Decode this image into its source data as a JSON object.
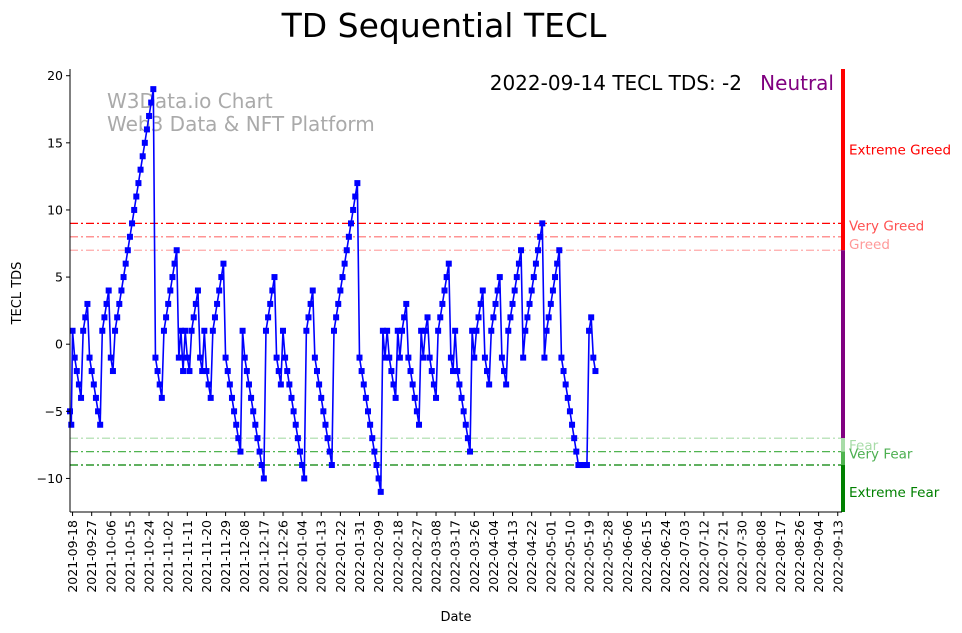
{
  "chart_data": {
    "type": "line",
    "title": "TD Sequential TECL",
    "xlabel": "Date",
    "ylabel": "TECL TDS",
    "ylim": [
      -12.5,
      20.5
    ],
    "y_ticks": [
      20,
      15,
      10,
      5,
      0,
      -5,
      -10
    ],
    "watermark_lines": [
      "W3Data.io Chart",
      "Web3 Data & NFT Platform"
    ],
    "status": {
      "text": "2022-09-14 TECL TDS: -2",
      "sentiment": "Neutral",
      "sentiment_color": "#800080"
    },
    "x_tick_labels": [
      "2021-09-18",
      "2021-09-27",
      "2021-10-06",
      "2021-10-15",
      "2021-10-24",
      "2021-11-02",
      "2021-11-11",
      "2021-11-20",
      "2021-11-29",
      "2021-12-08",
      "2021-12-17",
      "2021-12-26",
      "2022-01-04",
      "2022-01-13",
      "2022-01-22",
      "2022-01-31",
      "2022-02-09",
      "2022-02-18",
      "2022-02-27",
      "2022-03-08",
      "2022-03-17",
      "2022-03-26",
      "2022-04-04",
      "2022-04-13",
      "2022-04-22",
      "2022-05-01",
      "2022-05-10",
      "2022-05-19",
      "2022-05-28",
      "2022-06-06",
      "2022-06-15",
      "2022-06-24",
      "2022-07-03",
      "2022-07-12",
      "2022-07-21",
      "2022-07-30",
      "2022-08-08",
      "2022-08-17",
      "2022-08-26",
      "2022-09-04",
      "2022-09-13"
    ],
    "x_tick_day_offsets": [
      0,
      9,
      18,
      27,
      36,
      45,
      54,
      63,
      72,
      81,
      90,
      99,
      108,
      117,
      126,
      135,
      144,
      153,
      162,
      171,
      180,
      189,
      198,
      207,
      216,
      225,
      234,
      243,
      252,
      261,
      270,
      279,
      288,
      297,
      306,
      315,
      324,
      333,
      342,
      351,
      360
    ],
    "x_day_range": [
      -1.2,
      362
    ],
    "series": [
      {
        "name": "TECL TDS",
        "color": "#0000ff",
        "marker": "square",
        "points": [
          [
            -1.2,
            -5
          ],
          [
            -0.6,
            -6
          ],
          [
            0,
            1
          ],
          [
            1,
            -1
          ],
          [
            2,
            -2
          ],
          [
            3,
            -3
          ],
          [
            4,
            -4
          ],
          [
            5,
            1
          ],
          [
            6,
            2
          ],
          [
            7,
            3
          ],
          [
            8,
            -1
          ],
          [
            9,
            -2
          ],
          [
            10,
            -3
          ],
          [
            11,
            -4
          ],
          [
            12,
            -5
          ],
          [
            13,
            -6
          ],
          [
            14,
            1
          ],
          [
            15,
            2
          ],
          [
            16,
            3
          ],
          [
            17,
            4
          ],
          [
            18,
            -1
          ],
          [
            19,
            -2
          ],
          [
            20,
            1
          ],
          [
            21,
            2
          ],
          [
            22,
            3
          ],
          [
            23,
            4
          ],
          [
            24,
            5
          ],
          [
            25,
            6
          ],
          [
            26,
            7
          ],
          [
            27,
            8
          ],
          [
            28,
            9
          ],
          [
            29,
            10
          ],
          [
            30,
            11
          ],
          [
            31,
            12
          ],
          [
            32,
            13
          ],
          [
            33,
            14
          ],
          [
            34,
            15
          ],
          [
            35,
            16
          ],
          [
            36,
            17
          ],
          [
            37,
            18
          ],
          [
            38,
            19
          ],
          [
            39,
            -1
          ],
          [
            40,
            -2
          ],
          [
            41,
            -3
          ],
          [
            42,
            -4
          ],
          [
            43,
            1
          ],
          [
            44,
            2
          ],
          [
            45,
            3
          ],
          [
            46,
            4
          ],
          [
            47,
            5
          ],
          [
            48,
            6
          ],
          [
            49,
            7
          ],
          [
            50,
            -1
          ],
          [
            51,
            1
          ],
          [
            52,
            -2
          ],
          [
            53,
            1
          ],
          [
            54,
            -1
          ],
          [
            55,
            -2
          ],
          [
            56,
            1
          ],
          [
            57,
            2
          ],
          [
            58,
            3
          ],
          [
            59,
            4
          ],
          [
            60,
            -1
          ],
          [
            61,
            -2
          ],
          [
            62,
            1
          ],
          [
            63,
            -2
          ],
          [
            64,
            -3
          ],
          [
            65,
            -4
          ],
          [
            66,
            1
          ],
          [
            67,
            2
          ],
          [
            68,
            3
          ],
          [
            69,
            4
          ],
          [
            70,
            5
          ],
          [
            71,
            6
          ],
          [
            72,
            -1
          ],
          [
            73,
            -2
          ],
          [
            74,
            -3
          ],
          [
            75,
            -4
          ],
          [
            76,
            -5
          ],
          [
            77,
            -6
          ],
          [
            78,
            -7
          ],
          [
            79,
            -8
          ],
          [
            80,
            1
          ],
          [
            81,
            -1
          ],
          [
            82,
            -2
          ],
          [
            83,
            -3
          ],
          [
            84,
            -4
          ],
          [
            85,
            -5
          ],
          [
            86,
            -6
          ],
          [
            87,
            -7
          ],
          [
            88,
            -8
          ],
          [
            89,
            -9
          ],
          [
            90,
            -10
          ],
          [
            91,
            1
          ],
          [
            92,
            2
          ],
          [
            93,
            3
          ],
          [
            94,
            4
          ],
          [
            95,
            5
          ],
          [
            96,
            -1
          ],
          [
            97,
            -2
          ],
          [
            98,
            -3
          ],
          [
            99,
            1
          ],
          [
            100,
            -1
          ],
          [
            101,
            -2
          ],
          [
            102,
            -3
          ],
          [
            103,
            -4
          ],
          [
            104,
            -5
          ],
          [
            105,
            -6
          ],
          [
            106,
            -7
          ],
          [
            107,
            -8
          ],
          [
            108,
            -9
          ],
          [
            109,
            -10
          ],
          [
            110,
            1
          ],
          [
            111,
            2
          ],
          [
            112,
            3
          ],
          [
            113,
            4
          ],
          [
            114,
            -1
          ],
          [
            115,
            -2
          ],
          [
            116,
            -3
          ],
          [
            117,
            -4
          ],
          [
            118,
            -5
          ],
          [
            119,
            -6
          ],
          [
            120,
            -7
          ],
          [
            121,
            -8
          ],
          [
            122,
            -9
          ],
          [
            123,
            1
          ],
          [
            124,
            2
          ],
          [
            125,
            3
          ],
          [
            126,
            4
          ],
          [
            127,
            5
          ],
          [
            128,
            6
          ],
          [
            129,
            7
          ],
          [
            130,
            8
          ],
          [
            131,
            9
          ],
          [
            132,
            10
          ],
          [
            133,
            11
          ],
          [
            134,
            12
          ],
          [
            135,
            -1
          ],
          [
            136,
            -2
          ],
          [
            137,
            -3
          ],
          [
            138,
            -4
          ],
          [
            139,
            -5
          ],
          [
            140,
            -6
          ],
          [
            141,
            -7
          ],
          [
            142,
            -8
          ],
          [
            143,
            -9
          ],
          [
            144,
            -10
          ],
          [
            145,
            -11
          ],
          [
            146,
            1
          ],
          [
            147,
            -1
          ],
          [
            148,
            1
          ],
          [
            149,
            -1
          ],
          [
            150,
            -2
          ],
          [
            151,
            -3
          ],
          [
            152,
            -4
          ],
          [
            153,
            1
          ],
          [
            154,
            -1
          ],
          [
            155,
            1
          ],
          [
            156,
            2
          ],
          [
            157,
            3
          ],
          [
            158,
            -1
          ],
          [
            159,
            -2
          ],
          [
            160,
            -3
          ],
          [
            161,
            -4
          ],
          [
            162,
            -5
          ],
          [
            163,
            -6
          ],
          [
            164,
            1
          ],
          [
            165,
            -1
          ],
          [
            166,
            1
          ],
          [
            167,
            2
          ],
          [
            168,
            -1
          ],
          [
            169,
            -2
          ],
          [
            170,
            -3
          ],
          [
            171,
            -4
          ],
          [
            172,
            1
          ],
          [
            173,
            2
          ],
          [
            174,
            3
          ],
          [
            175,
            4
          ],
          [
            176,
            5
          ],
          [
            177,
            6
          ],
          [
            178,
            -1
          ],
          [
            179,
            -2
          ],
          [
            180,
            1
          ],
          [
            181,
            -2
          ],
          [
            182,
            -3
          ],
          [
            183,
            -4
          ],
          [
            184,
            -5
          ],
          [
            185,
            -6
          ],
          [
            186,
            -7
          ],
          [
            187,
            -8
          ],
          [
            188,
            1
          ],
          [
            189,
            -1
          ],
          [
            190,
            1
          ],
          [
            191,
            2
          ],
          [
            192,
            3
          ],
          [
            193,
            4
          ],
          [
            194,
            -1
          ],
          [
            195,
            -2
          ],
          [
            196,
            -3
          ],
          [
            197,
            1
          ],
          [
            198,
            2
          ],
          [
            199,
            3
          ],
          [
            200,
            4
          ],
          [
            201,
            5
          ],
          [
            202,
            -1
          ],
          [
            203,
            -2
          ],
          [
            204,
            -3
          ],
          [
            205,
            1
          ],
          [
            206,
            2
          ],
          [
            207,
            3
          ],
          [
            208,
            4
          ],
          [
            209,
            5
          ],
          [
            210,
            6
          ],
          [
            211,
            7
          ],
          [
            212,
            -1
          ],
          [
            213,
            1
          ],
          [
            214,
            2
          ],
          [
            215,
            3
          ],
          [
            216,
            4
          ],
          [
            217,
            5
          ],
          [
            218,
            6
          ],
          [
            219,
            7
          ],
          [
            220,
            8
          ],
          [
            221,
            9
          ],
          [
            222,
            -1
          ],
          [
            223,
            1
          ],
          [
            224,
            2
          ],
          [
            225,
            3
          ],
          [
            226,
            4
          ],
          [
            227,
            5
          ],
          [
            228,
            6
          ],
          [
            229,
            7
          ],
          [
            230,
            -1
          ],
          [
            231,
            -2
          ],
          [
            232,
            -3
          ],
          [
            233,
            -4
          ],
          [
            234,
            -5
          ],
          [
            235,
            -6
          ],
          [
            236,
            -7
          ],
          [
            237,
            -8
          ],
          [
            238,
            -9
          ],
          [
            239,
            -9
          ],
          [
            240,
            -9
          ],
          [
            241,
            -9
          ],
          [
            242,
            -9
          ],
          [
            243,
            1
          ],
          [
            244,
            2
          ],
          [
            245,
            -1
          ],
          [
            246,
            -2
          ]
        ]
      }
    ],
    "reference_lines": [
      {
        "name": "Very Greed",
        "y": 9,
        "color": "#ff0000",
        "style": "dashdot",
        "label": "Very Greed",
        "label_color": "#ff5050"
      },
      {
        "name": "Greed upper",
        "y": 8,
        "color": "#ff7070",
        "style": "dashdot",
        "label": "",
        "label_color": ""
      },
      {
        "name": "Greed",
        "y": 7,
        "color": "#ffaaaa",
        "style": "dashdot",
        "label": "Greed",
        "label_color": "#ff9999"
      },
      {
        "name": "Fear",
        "y": -7,
        "color": "#a8dca8",
        "style": "dashdot",
        "label": "Fear",
        "label_color": "#a8dca8"
      },
      {
        "name": "Very Fear",
        "y": -8,
        "color": "#50b450",
        "style": "dashdot",
        "label": "Very Fear",
        "label_color": "#4caf50"
      },
      {
        "name": "Extreme Fear line",
        "y": -9,
        "color": "#008000",
        "style": "dashdot",
        "label": "",
        "label_color": ""
      }
    ],
    "right_bands": [
      {
        "name": "Extreme Greed",
        "from": 7,
        "to": 20.5,
        "color": "#ff0000",
        "label": "Extreme Greed",
        "label_y": 14.5,
        "label_color": "#ff0000"
      },
      {
        "name": "Neutral",
        "from": -7,
        "to": 7,
        "color": "#800080",
        "label": "",
        "label_y": 0,
        "label_color": ""
      },
      {
        "name": "Fear",
        "from": -8,
        "to": -7,
        "color": "#a8dca8",
        "label": "",
        "label_y": 0,
        "label_color": ""
      },
      {
        "name": "Very Fear",
        "from": -9,
        "to": -8,
        "color": "#50b450",
        "label": "",
        "label_y": 0,
        "label_color": ""
      },
      {
        "name": "Extreme Fear",
        "from": -12.5,
        "to": -9,
        "color": "#008000",
        "label": "Extreme Fear",
        "label_y": -11,
        "label_color": "#008000"
      }
    ]
  }
}
